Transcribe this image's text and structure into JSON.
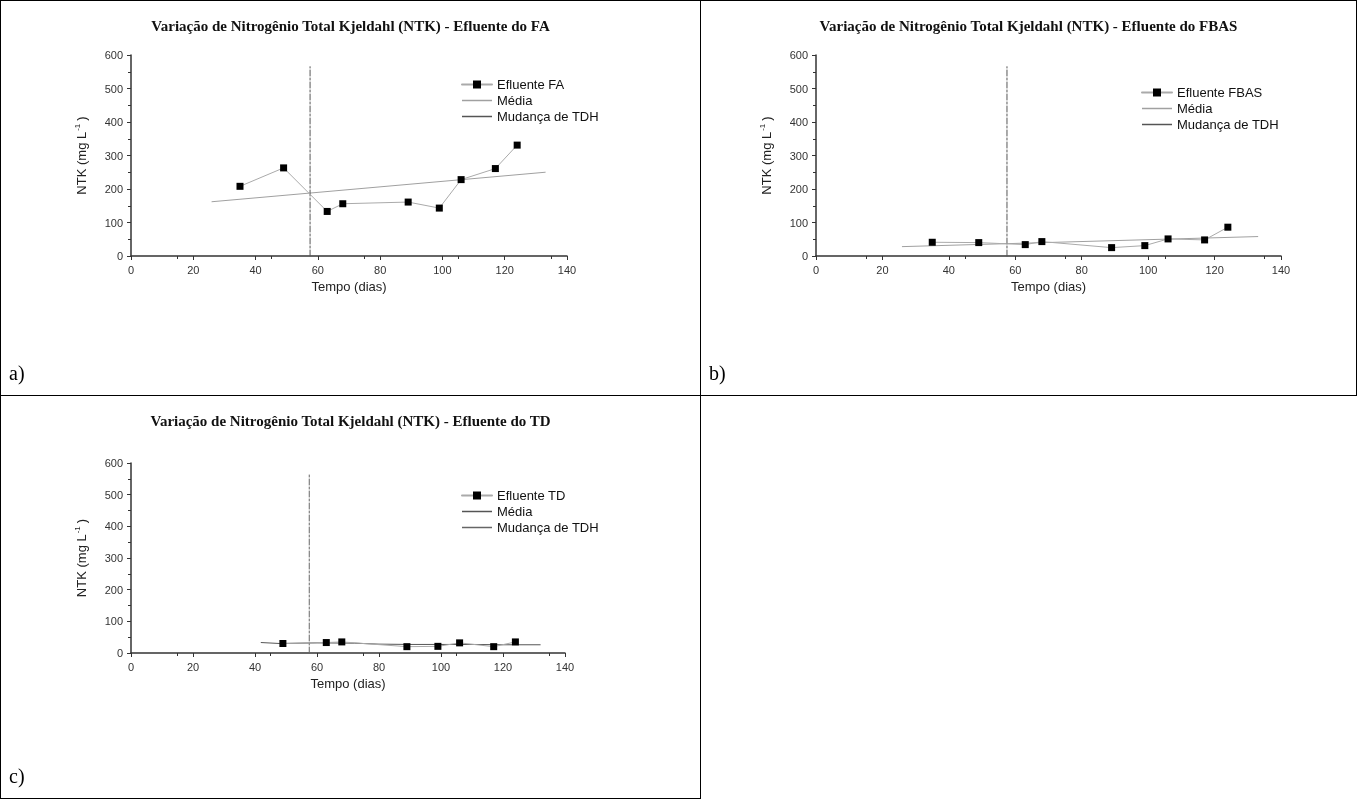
{
  "chart_data": [
    {
      "type": "line",
      "title": "Variação de Nitrogênio Total Kjeldahl (NTK) - Efluente do FA",
      "xlabel": "Tempo (dias)",
      "ylabel": "NTK (mg L$^{-1}$)",
      "x": [
        35,
        49,
        63,
        68,
        89,
        99,
        106,
        117,
        124
      ],
      "series": [
        {
          "name": "Efluente FA",
          "color": "#000000",
          "marker": "square",
          "values": [
            208,
            263,
            133,
            156,
            161,
            143,
            228,
            261,
            331
          ]
        },
        {
          "name": "Média",
          "color": "#a0a0a0",
          "marker": "none",
          "x": [
            26,
            133
          ],
          "values": [
            162,
            250
          ]
        },
        {
          "name": "Mudança de TDH",
          "color": "#555555",
          "marker": "none",
          "line_style": "dashed",
          "x": [
            57.5,
            57.5
          ],
          "values": [
            0,
            565
          ]
        }
      ],
      "xlim": [
        0,
        140
      ],
      "xticks": [
        0,
        20,
        40,
        60,
        80,
        100,
        120,
        140
      ],
      "ylim": [
        0,
        600
      ],
      "yticks": [
        0,
        100,
        200,
        300,
        400,
        500,
        600
      ],
      "grid": false,
      "legend": "top right",
      "annotations": [
        "a)"
      ]
    },
    {
      "type": "line",
      "title": "Variação de Nitrogênio Total Kjeldahl (NTK) - Efluente do FBAS",
      "xlabel": "Tempo (dias)",
      "ylabel": "NTK (mg L$^{-1}$)",
      "x": [
        35,
        49,
        63,
        68,
        89,
        99,
        106,
        117,
        124
      ],
      "series": [
        {
          "name": "Efluente FBAS",
          "color": "#000000",
          "marker": "square",
          "values": [
            41,
            40,
            34,
            43,
            25,
            31,
            51,
            48,
            86
          ]
        },
        {
          "name": "Média",
          "color": "#a0a0a0",
          "marker": "none",
          "x": [
            26,
            133
          ],
          "values": [
            28,
            58
          ]
        },
        {
          "name": "Mudança de TDH",
          "color": "#555555",
          "marker": "none",
          "line_style": "dashed",
          "x": [
            57.5,
            57.5
          ],
          "values": [
            0,
            565
          ]
        }
      ],
      "xlim": [
        0,
        140
      ],
      "xticks": [
        0,
        20,
        40,
        60,
        80,
        100,
        120,
        140
      ],
      "ylim": [
        0,
        600
      ],
      "yticks": [
        0,
        100,
        200,
        300,
        400,
        500,
        600
      ],
      "grid": false,
      "legend": "top right",
      "annotations": [
        "b)"
      ]
    },
    {
      "type": "line",
      "title": "Variação de Nitrogênio Total Kjeldahl (NTK) - Efluente do TD",
      "xlabel": "Tempo (dias)",
      "ylabel": "NTK (mg L$^{-1}$)",
      "x": [
        49,
        63,
        68,
        89,
        99,
        106,
        117,
        124
      ],
      "series": [
        {
          "name": "Efluente TD",
          "color": "#000000",
          "marker": "square",
          "values": [
            30,
            33,
            35,
            20,
            21,
            32,
            20,
            35
          ]
        },
        {
          "name": "Média",
          "color": "#555555",
          "marker": "none",
          "x": [
            42,
            48,
            60,
            72,
            80,
            90,
            100,
            110,
            120,
            132
          ],
          "values": [
            33,
            30,
            32,
            31,
            28,
            27,
            27,
            27,
            26,
            26
          ]
        },
        {
          "name": "Mudança de TDH",
          "color": "#666666",
          "marker": "none",
          "line_style": "dashed",
          "x": [
            57.5,
            57.5
          ],
          "values": [
            0,
            565
          ]
        }
      ],
      "xlim": [
        0,
        140
      ],
      "xticks": [
        0,
        20,
        40,
        60,
        80,
        100,
        120,
        140
      ],
      "ylim": [
        0,
        600
      ],
      "yticks": [
        0,
        100,
        200,
        300,
        400,
        500,
        600
      ],
      "grid": false,
      "legend": "top right",
      "annotations": [
        "c)"
      ]
    }
  ]
}
